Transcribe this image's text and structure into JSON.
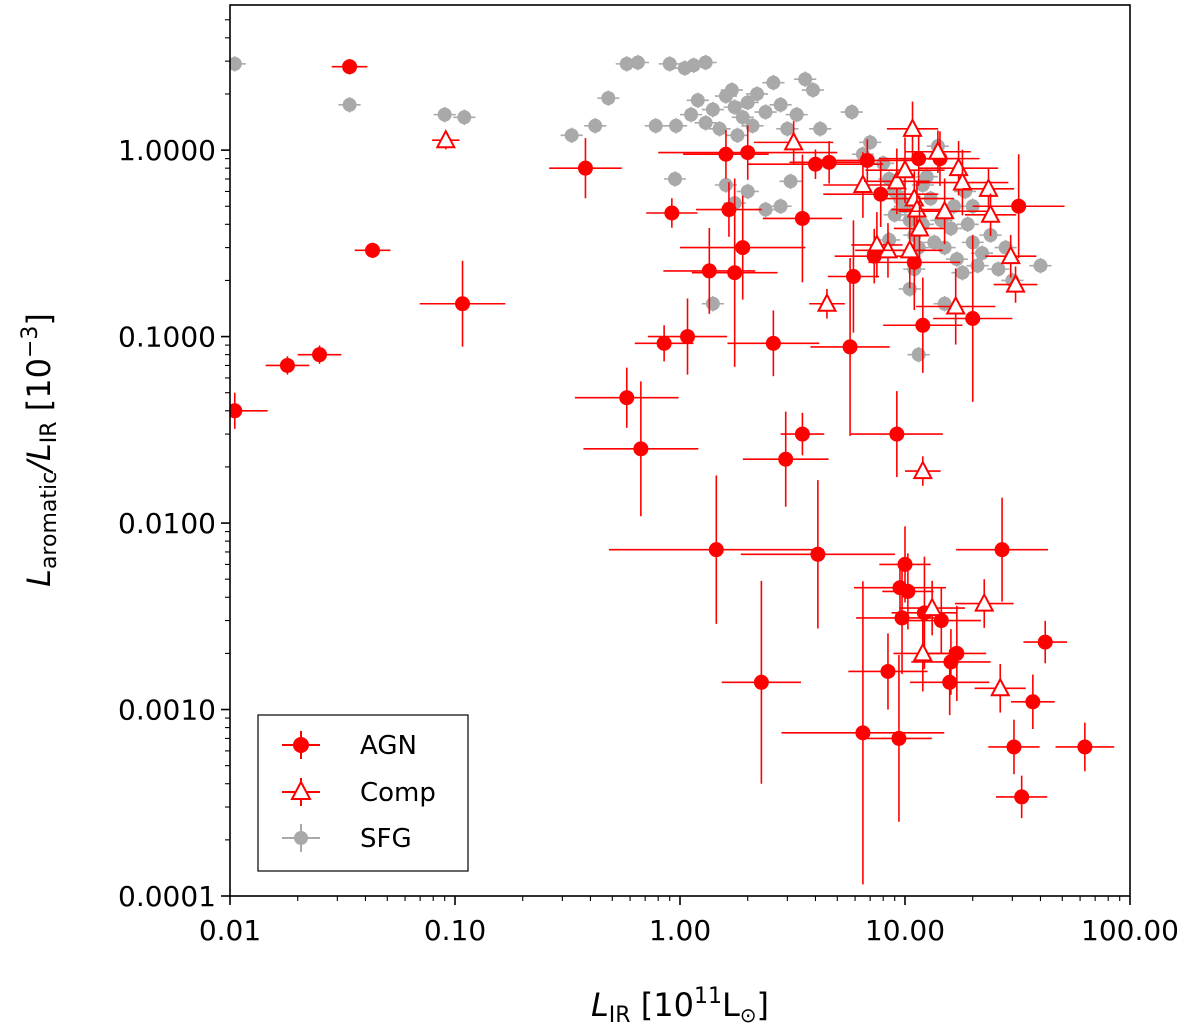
{
  "chart_data": {
    "type": "scatter",
    "x_scale": "log",
    "y_scale": "log",
    "xlim": [
      0.01,
      100
    ],
    "ylim": [
      0.0001,
      6
    ],
    "x_ticks": [
      {
        "value": 0.01,
        "label": "0.01"
      },
      {
        "value": 0.1,
        "label": "0.10"
      },
      {
        "value": 1,
        "label": "1.00"
      },
      {
        "value": 10,
        "label": "10.00"
      },
      {
        "value": 100,
        "label": "100.00"
      }
    ],
    "y_ticks": [
      {
        "value": 0.0001,
        "label": "0.0001"
      },
      {
        "value": 0.001,
        "label": "0.0010"
      },
      {
        "value": 0.01,
        "label": "0.0100"
      },
      {
        "value": 0.1,
        "label": "0.1000"
      },
      {
        "value": 1,
        "label": "1.0000"
      }
    ],
    "xlabel": {
      "main": "L",
      "sub": "IR",
      "bracket_open": " [10",
      "sup": "11",
      "unit": "L",
      "unit_sub": "⊙",
      "bracket_close": "]"
    },
    "ylabel": {
      "main": "L",
      "sub": "aromatic",
      "slash": "/L",
      "sub2": "IR",
      "bracket_open": " [10",
      "sup": "−3",
      "bracket_close": "]"
    },
    "legend": {
      "position": "lower-left",
      "entries": [
        {
          "label": "AGN",
          "marker": "filled-circle",
          "color": "#ff0000"
        },
        {
          "label": "Comp",
          "marker": "open-triangle",
          "color": "#ff0000"
        },
        {
          "label": "SFG",
          "marker": "filled-circle",
          "color": "#a9a9a9"
        }
      ]
    },
    "colors": {
      "agn": "#ff0000",
      "comp": "#ff0000",
      "sfg": "#a9a9a9"
    },
    "series": [
      {
        "name": "SFG",
        "marker": "filled-circle",
        "points": [
          [
            0.0105,
            2.9
          ],
          [
            0.034,
            1.75
          ],
          [
            0.09,
            1.55
          ],
          [
            0.11,
            1.5
          ],
          [
            0.33,
            1.2
          ],
          [
            0.42,
            1.35
          ],
          [
            0.48,
            1.9
          ],
          [
            0.58,
            2.9
          ],
          [
            0.65,
            2.95
          ],
          [
            0.78,
            1.35
          ],
          [
            0.9,
            2.9
          ],
          [
            0.96,
            1.35
          ],
          [
            1.05,
            2.75
          ],
          [
            1.15,
            2.85
          ],
          [
            1.3,
            2.95
          ],
          [
            1.12,
            1.55
          ],
          [
            1.2,
            1.85
          ],
          [
            1.3,
            1.4
          ],
          [
            1.4,
            1.65
          ],
          [
            1.5,
            1.3
          ],
          [
            1.6,
            1.95
          ],
          [
            1.7,
            2.1
          ],
          [
            1.75,
            1.7
          ],
          [
            1.8,
            1.2
          ],
          [
            1.9,
            1.5
          ],
          [
            2.0,
            1.8
          ],
          [
            2.1,
            1.35
          ],
          [
            2.2,
            2.0
          ],
          [
            2.4,
            1.6
          ],
          [
            2.6,
            2.3
          ],
          [
            2.8,
            1.75
          ],
          [
            3.0,
            1.3
          ],
          [
            3.3,
            1.55
          ],
          [
            3.6,
            2.4
          ],
          [
            3.9,
            2.1
          ],
          [
            4.2,
            1.3
          ],
          [
            0.95,
            0.7
          ],
          [
            1.6,
            0.65
          ],
          [
            1.75,
            0.52
          ],
          [
            2.0,
            0.6
          ],
          [
            2.4,
            0.48
          ],
          [
            2.8,
            0.5
          ],
          [
            3.1,
            0.68
          ],
          [
            1.4,
            0.15
          ],
          [
            5.8,
            1.6
          ],
          [
            6.5,
            0.95
          ],
          [
            7.0,
            1.1
          ],
          [
            8.0,
            0.85
          ],
          [
            8.5,
            0.7
          ],
          [
            9.0,
            0.6
          ],
          [
            9.5,
            0.55
          ],
          [
            10.0,
            0.5
          ],
          [
            10.5,
            0.42
          ],
          [
            11.0,
            0.35
          ],
          [
            11.5,
            0.3
          ],
          [
            12.0,
            0.65
          ],
          [
            12.5,
            0.72
          ],
          [
            13.0,
            0.55
          ],
          [
            14.0,
            1.05
          ],
          [
            14.5,
            0.42
          ],
          [
            15.0,
            0.3
          ],
          [
            16.0,
            0.38
          ],
          [
            17.0,
            0.26
          ],
          [
            18.0,
            0.22
          ],
          [
            19.0,
            0.4
          ],
          [
            20.0,
            0.32
          ],
          [
            21.0,
            0.24
          ],
          [
            22.0,
            0.28
          ],
          [
            24.0,
            0.35
          ],
          [
            26.0,
            0.23
          ],
          [
            28.0,
            0.3
          ],
          [
            30.0,
            0.2
          ],
          [
            40.0,
            0.24
          ],
          [
            10.5,
            0.18
          ],
          [
            11.0,
            0.23
          ],
          [
            11.5,
            0.08
          ],
          [
            15.0,
            0.15
          ],
          [
            9.0,
            0.45
          ],
          [
            8.5,
            0.33
          ],
          [
            12.0,
            0.4
          ],
          [
            13.5,
            0.32
          ],
          [
            16.5,
            0.5
          ],
          [
            18.5,
            0.6
          ],
          [
            20.0,
            0.5
          ]
        ]
      },
      {
        "name": "AGN",
        "marker": "filled-circle",
        "points": [
          [
            0.0105,
            0.04,
            1.4,
            1.25
          ],
          [
            0.018,
            0.07,
            1.25,
            1.12
          ],
          [
            0.025,
            0.08,
            1.25,
            1.12
          ],
          [
            0.034,
            2.8,
            1.2,
            1.1
          ],
          [
            0.043,
            0.29,
            1.2,
            1.1
          ],
          [
            0.108,
            0.15,
            1.55,
            1.7
          ],
          [
            0.38,
            0.8,
            1.45,
            1.45
          ],
          [
            0.58,
            0.047,
            1.7,
            1.45
          ],
          [
            0.67,
            0.025,
            1.8,
            2.3
          ],
          [
            0.85,
            0.092,
            1.35,
            1.25
          ],
          [
            0.92,
            0.46,
            1.3,
            1.2
          ],
          [
            1.08,
            0.1,
            1.5,
            1.6
          ],
          [
            1.35,
            0.225,
            1.6,
            1.7
          ],
          [
            1.45,
            0.0072,
            3.0,
            2.5
          ],
          [
            1.6,
            0.95,
            1.55,
            1.35
          ],
          [
            1.65,
            0.48,
            1.4,
            1.4
          ],
          [
            1.75,
            0.22,
            1.55,
            3.2
          ],
          [
            1.9,
            0.3,
            1.9,
            1.9
          ],
          [
            2.0,
            0.97,
            2.5,
            1.4
          ],
          [
            2.3,
            0.0014,
            1.5,
            3.5
          ],
          [
            2.6,
            0.092,
            1.6,
            1.5
          ],
          [
            2.95,
            0.022,
            1.55,
            1.8
          ],
          [
            3.5,
            0.43,
            1.5,
            2.2
          ],
          [
            3.5,
            0.03,
            1.25,
            1.3
          ],
          [
            4.1,
            0.0068,
            2.2,
            2.5
          ],
          [
            4.0,
            0.84,
            2.0,
            1.2
          ],
          [
            4.6,
            0.86,
            1.5,
            1.3
          ],
          [
            5.7,
            0.088,
            1.5,
            3.0
          ],
          [
            5.9,
            0.21,
            1.3,
            2.0
          ],
          [
            6.5,
            0.00075,
            2.3,
            6.5
          ],
          [
            6.8,
            0.88,
            1.7,
            1.3
          ],
          [
            7.3,
            0.27,
            1.5,
            1.4
          ],
          [
            7.8,
            0.58,
            1.8,
            1.5
          ],
          [
            8.4,
            0.0016,
            1.5,
            1.6
          ],
          [
            9.2,
            0.03,
            1.6,
            1.7
          ],
          [
            9.4,
            0.0007,
            1.4,
            2.8
          ],
          [
            9.5,
            0.0045,
            1.6,
            1.4
          ],
          [
            9.7,
            0.0031,
            1.6,
            2.0
          ],
          [
            10.0,
            0.006,
            1.3,
            1.6
          ],
          [
            10.3,
            0.0043,
            1.3,
            1.6
          ],
          [
            11.0,
            0.25,
            1.6,
            1.8
          ],
          [
            11.5,
            0.9,
            1.5,
            1.4
          ],
          [
            12.0,
            0.115,
            1.5,
            1.8
          ],
          [
            12.2,
            0.0033,
            1.4,
            2.0
          ],
          [
            14.3,
            0.9,
            1.5,
            1.4
          ],
          [
            14.5,
            0.003,
            1.5,
            1.5
          ],
          [
            15.8,
            0.0014,
            1.5,
            1.5
          ],
          [
            16.0,
            0.0018,
            1.5,
            1.5
          ],
          [
            17.0,
            0.002,
            1.35,
            1.8
          ],
          [
            20.0,
            0.125,
            1.5,
            2.8
          ],
          [
            27.0,
            0.0072,
            1.6,
            1.9
          ],
          [
            30.5,
            0.00063,
            1.3,
            1.4
          ],
          [
            32.0,
            0.5,
            1.6,
            1.9
          ],
          [
            33.0,
            0.00034,
            1.3,
            1.3
          ],
          [
            37.0,
            0.0011,
            1.25,
            1.4
          ],
          [
            42.0,
            0.0023,
            1.25,
            1.3
          ],
          [
            63.0,
            0.00063,
            1.35,
            1.35
          ]
        ]
      },
      {
        "name": "Comp",
        "marker": "open-triangle",
        "points": [
          [
            0.091,
            1.13,
            1.15,
            1.12
          ],
          [
            3.2,
            1.1,
            1.5,
            1.3
          ],
          [
            4.5,
            0.15,
            1.2,
            1.2
          ],
          [
            6.5,
            0.65,
            1.5,
            1.5
          ],
          [
            7.5,
            0.31,
            1.3,
            1.5
          ],
          [
            8.4,
            0.29,
            1.4,
            1.4
          ],
          [
            9.2,
            0.68,
            1.4,
            1.5
          ],
          [
            10.0,
            0.78,
            1.5,
            1.5
          ],
          [
            10.5,
            0.29,
            1.4,
            1.6
          ],
          [
            10.8,
            1.3,
            1.3,
            1.4
          ],
          [
            11.0,
            0.55,
            1.5,
            1.4
          ],
          [
            11.3,
            0.48,
            1.3,
            1.4
          ],
          [
            11.6,
            0.38,
            1.3,
            1.5
          ],
          [
            12.0,
            0.019,
            1.2,
            1.2
          ],
          [
            12.0,
            0.002,
            1.35,
            1.6
          ],
          [
            13.2,
            0.0035,
            1.4,
            1.4
          ],
          [
            14.0,
            0.98,
            1.4,
            1.3
          ],
          [
            15.0,
            0.47,
            1.6,
            1.5
          ],
          [
            16.8,
            0.145,
            1.5,
            1.6
          ],
          [
            17.3,
            0.8,
            1.5,
            1.4
          ],
          [
            18.0,
            0.67,
            1.6,
            1.5
          ],
          [
            22.5,
            0.0037,
            1.35,
            1.35
          ],
          [
            23.5,
            0.62,
            1.3,
            1.3
          ],
          [
            24.0,
            0.45,
            1.3,
            1.3
          ],
          [
            26.5,
            0.0013,
            1.3,
            1.35
          ],
          [
            29.5,
            0.27,
            1.3,
            1.3
          ],
          [
            31.0,
            0.19,
            1.25,
            1.25
          ]
        ]
      }
    ]
  }
}
